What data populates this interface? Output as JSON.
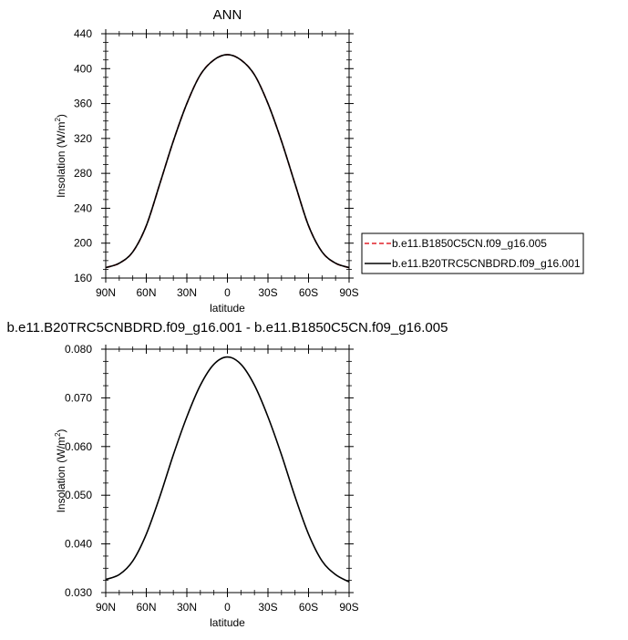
{
  "chart_data": [
    {
      "type": "line",
      "title": "ANN",
      "xlabel": "latitude",
      "ylabel": "Insolation (W/m",
      "ylabel_sup": "2",
      "ylabel_end": ")",
      "xlim": [
        90,
        -90
      ],
      "ylim": [
        160,
        440
      ],
      "x_ticks": [
        90,
        60,
        30,
        0,
        -30,
        -60,
        -90
      ],
      "x_tick_labels": [
        "90N",
        "60N",
        "30N",
        "0",
        "30S",
        "60S",
        "90S"
      ],
      "y_ticks": [
        160,
        200,
        240,
        280,
        320,
        360,
        400,
        440
      ],
      "y_tick_labels": [
        "160",
        "200",
        "240",
        "280",
        "320",
        "360",
        "400",
        "440"
      ],
      "x": [
        90,
        80,
        70,
        60,
        50,
        40,
        30,
        20,
        10,
        0,
        -10,
        -20,
        -30,
        -40,
        -50,
        -60,
        -70,
        -80,
        -90
      ],
      "series": [
        {
          "name": "b.e11.B1850C5CN.f09_g16.005",
          "color": "#e0202a",
          "dash": "dashed",
          "values": [
            172,
            177,
            190,
            220,
            268,
            317,
            360,
            393,
            410,
            416,
            410,
            393,
            360,
            317,
            268,
            220,
            190,
            177,
            172
          ]
        },
        {
          "name": "b.e11.B20TRC5CNBDRD.f09_g16.001",
          "color": "#000000",
          "dash": "solid",
          "values": [
            172,
            177,
            190,
            220,
            268,
            317,
            360,
            393,
            410,
            416,
            410,
            393,
            360,
            317,
            268,
            220,
            190,
            177,
            172
          ]
        }
      ],
      "legend": "right"
    },
    {
      "type": "line",
      "title": "b.e11.B20TRC5CNBDRD.f09_g16.001 - b.e11.B1850C5CN.f09_g16.005",
      "xlabel": "latitude",
      "ylabel": "Insolation (W/m",
      "ylabel_sup": "2",
      "ylabel_end": ")",
      "xlim": [
        90,
        -90
      ],
      "ylim": [
        0.03,
        0.08
      ],
      "x_ticks": [
        90,
        60,
        30,
        0,
        -30,
        -60,
        -90
      ],
      "x_tick_labels": [
        "90N",
        "60N",
        "30N",
        "0",
        "30S",
        "60S",
        "90S"
      ],
      "y_ticks": [
        0.03,
        0.04,
        0.05,
        0.06,
        0.07,
        0.08
      ],
      "y_tick_labels": [
        "0.030",
        "0.040",
        "0.050",
        "0.060",
        "0.070",
        "0.080"
      ],
      "x": [
        90,
        80,
        70,
        60,
        50,
        40,
        30,
        20,
        10,
        0,
        -10,
        -20,
        -30,
        -40,
        -50,
        -60,
        -70,
        -80,
        -90
      ],
      "series": [
        {
          "color": "#000000",
          "dash": "solid",
          "values": [
            0.0327,
            0.0337,
            0.0365,
            0.042,
            0.0497,
            0.0583,
            0.0661,
            0.0726,
            0.0769,
            0.0784,
            0.0769,
            0.0726,
            0.0661,
            0.0583,
            0.0497,
            0.042,
            0.0365,
            0.0337,
            0.0322
          ]
        }
      ]
    }
  ]
}
